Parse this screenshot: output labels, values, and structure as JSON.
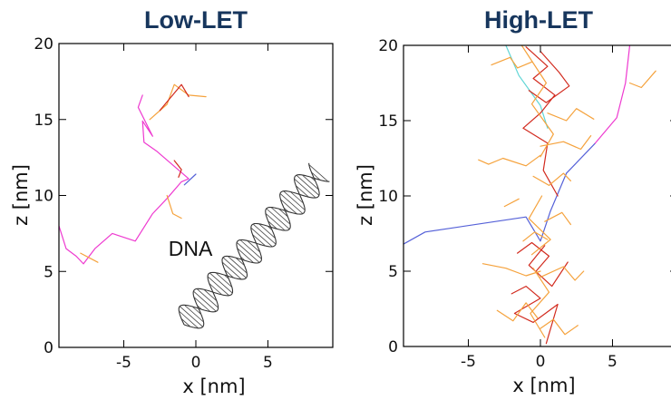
{
  "colors": {
    "title": "#17365d",
    "primary_track": "#ee3ad0",
    "primary_track_low_energy": "#5561d8",
    "secondary_electron_orange": "#f5a23c",
    "secondary_electron_red": "#d22a1e",
    "secondary_electron_cyan": "#5fd6d6",
    "dna": "#333333"
  },
  "chart_data": [
    {
      "type": "line",
      "title": "Low-LET",
      "xlabel": "x  [nm]",
      "ylabel": "z  [nm]",
      "xlim": [
        -9.5,
        9.5
      ],
      "ylim": [
        0,
        20
      ],
      "x_ticks": [
        -5,
        0,
        5
      ],
      "y_ticks": [
        0,
        5,
        10,
        15,
        20
      ],
      "x_tick_labels": [
        "-5",
        "0",
        "5"
      ],
      "y_tick_labels": [
        "0",
        "5",
        "10",
        "15",
        "20"
      ],
      "annotation": "DNA",
      "grid": false,
      "series": [
        {
          "color": "#ee3ad0",
          "x": [
            -9.5,
            -9.0,
            -8.3,
            -7.8,
            -7.0,
            -5.8,
            -4.2,
            -3.0,
            -2.0,
            -1.0,
            -0.5,
            -2.7,
            -3.6,
            -3.7,
            -3.0,
            -4.0,
            -3.7
          ],
          "y": [
            8.0,
            6.5,
            6.0,
            5.5,
            6.5,
            7.5,
            7.0,
            8.8,
            9.8,
            10.9,
            11.1,
            12.9,
            13.5,
            14.9,
            13.9,
            15.8,
            16.6
          ]
        },
        {
          "color": "#5561d8",
          "x": [
            -0.8,
            0.0
          ],
          "y": [
            10.7,
            11.4
          ]
        },
        {
          "color": "#f5a23c",
          "x": [
            -3.2,
            -2.0,
            -1.5,
            -0.5,
            0.7
          ],
          "y": [
            15.0,
            16.0,
            17.3,
            16.6,
            16.5
          ]
        },
        {
          "color": "#d22a1e",
          "x": [
            -2.5,
            -1.0,
            -0.5
          ],
          "y": [
            15.6,
            17.3,
            16.5
          ]
        },
        {
          "color": "#f5a23c",
          "x": [
            -8.0,
            -6.8
          ],
          "y": [
            6.2,
            5.6
          ]
        },
        {
          "color": "#d22a1e",
          "x": [
            -1.5,
            -1.0,
            -1.2
          ],
          "y": [
            12.3,
            11.7,
            11.2
          ]
        },
        {
          "color": "#f5a23c",
          "x": [
            -2.0,
            -1.6,
            -1.0
          ],
          "y": [
            10.0,
            8.8,
            8.5
          ]
        }
      ]
    },
    {
      "type": "line",
      "title": "High-LET",
      "xlabel": "x  [nm]",
      "ylabel": "z  [nm]",
      "xlim": [
        -9.5,
        9.5
      ],
      "ylim": [
        0,
        20
      ],
      "x_ticks": [
        -5,
        0,
        5
      ],
      "y_ticks": [
        0,
        5,
        10,
        15,
        20
      ],
      "x_tick_labels": [
        "-5",
        "0",
        "5"
      ],
      "y_tick_labels": [
        "0",
        "5",
        "10",
        "15",
        "20"
      ],
      "grid": false,
      "series": [
        {
          "color": "#5561d8",
          "x": [
            -9.5,
            -8.0,
            -1.0,
            0.0,
            0.7,
            1.8,
            3.8
          ],
          "y": [
            6.8,
            7.6,
            8.6,
            7.0,
            9.0,
            11.5,
            13.5
          ]
        },
        {
          "color": "#ee3ad0",
          "x": [
            3.8,
            5.3,
            5.9,
            6.2
          ],
          "y": [
            13.5,
            15.2,
            17.5,
            20.0
          ]
        },
        {
          "color": "#5fd6d6",
          "x": [
            -2.4,
            -1.5,
            0.0,
            0.5
          ],
          "y": [
            20.0,
            18.0,
            16.0,
            14.5
          ]
        },
        {
          "color": "#d22a1e",
          "x": [
            -1.0,
            0.5,
            -0.5,
            1.0,
            0.0,
            -1.2,
            0.5,
            0.2,
            1.2
          ],
          "y": [
            19.9,
            18.6,
            17.8,
            16.7,
            15.5,
            14.5,
            13.5,
            11.7,
            10.0
          ]
        },
        {
          "color": "#d22a1e",
          "x": [
            0.0,
            1.3,
            2.0,
            0.4,
            -0.8
          ],
          "y": [
            19.6,
            18.2,
            17.3,
            16.2,
            17.0
          ]
        },
        {
          "color": "#d22a1e",
          "x": [
            -2.0,
            -1.0,
            0.0,
            -1.8,
            -0.5,
            1.2,
            0.4
          ],
          "y": [
            3.5,
            4.0,
            3.2,
            2.2,
            1.6,
            2.8,
            0.2
          ]
        },
        {
          "color": "#d22a1e",
          "x": [
            0.3,
            -0.8,
            0.8,
            1.9
          ],
          "y": [
            6.7,
            5.4,
            4.0,
            5.6
          ]
        },
        {
          "color": "#d22a1e",
          "x": [
            -1.6,
            -0.6,
            0.6,
            -0.3
          ],
          "y": [
            6.2,
            6.9,
            6.0,
            5.0
          ]
        },
        {
          "color": "#f5a23c",
          "x": [
            -4.3,
            -3.6,
            -2.6,
            -1.0,
            0.0
          ],
          "y": [
            12.4,
            12.1,
            12.5,
            12.0,
            12.7
          ]
        },
        {
          "color": "#f5a23c",
          "x": [
            0.0,
            1.6,
            2.8,
            3.5
          ],
          "y": [
            13.3,
            13.6,
            13.1,
            14.0
          ]
        },
        {
          "color": "#f5a23c",
          "x": [
            -3.4,
            -2.1,
            -1.6,
            -0.6
          ],
          "y": [
            18.7,
            19.2,
            18.5,
            18.9
          ]
        },
        {
          "color": "#f5a23c",
          "x": [
            0.5,
            1.8,
            2.5,
            3.7
          ],
          "y": [
            15.5,
            15.0,
            15.8,
            15.1
          ]
        },
        {
          "color": "#f5a23c",
          "x": [
            -0.5,
            0.6,
            1.6,
            2.1
          ],
          "y": [
            11.3,
            10.7,
            11.5,
            11.0
          ]
        },
        {
          "color": "#f5a23c",
          "x": [
            -4.0,
            -2.4,
            -1.0,
            0.0
          ],
          "y": [
            5.5,
            5.2,
            4.7,
            5.0
          ]
        },
        {
          "color": "#f5a23c",
          "x": [
            0.0,
            1.6,
            2.4,
            3.0
          ],
          "y": [
            4.6,
            5.3,
            4.4,
            5.0
          ]
        },
        {
          "color": "#f5a23c",
          "x": [
            -3.0,
            -1.9,
            -1.0,
            -0.2
          ],
          "y": [
            2.4,
            1.7,
            2.9,
            1.9
          ]
        },
        {
          "color": "#f5a23c",
          "x": [
            0.0,
            0.9,
            1.7,
            2.6
          ],
          "y": [
            1.2,
            1.8,
            0.8,
            1.4
          ]
        },
        {
          "color": "#f5a23c",
          "x": [
            -1.3,
            0.4,
            -0.6,
            0.9,
            0.0
          ],
          "y": [
            20.0,
            17.5,
            16.1,
            14.1,
            12.6
          ]
        },
        {
          "color": "#f5a23c",
          "x": [
            0.1,
            -0.8,
            0.7,
            -0.6
          ],
          "y": [
            10.0,
            8.5,
            7.1,
            6.1
          ]
        },
        {
          "color": "#f5a23c",
          "x": [
            -0.5,
            0.6,
            -0.7,
            0.3
          ],
          "y": [
            5.2,
            3.6,
            2.2,
            0.6
          ]
        },
        {
          "color": "#f5a23c",
          "x": [
            6.2,
            7.0,
            8.0
          ],
          "y": [
            17.5,
            17.2,
            18.3
          ]
        },
        {
          "color": "#f5a23c",
          "x": [
            -1.2,
            -0.4,
            0.5
          ],
          "y": [
            7.0,
            7.6,
            7.1
          ]
        },
        {
          "color": "#f5a23c",
          "x": [
            -2.5,
            -1.5
          ],
          "y": [
            9.3,
            9.8
          ]
        },
        {
          "color": "#f5a23c",
          "x": [
            0.3,
            1.5,
            2.1
          ],
          "y": [
            8.3,
            8.9,
            8.1
          ]
        }
      ]
    }
  ]
}
